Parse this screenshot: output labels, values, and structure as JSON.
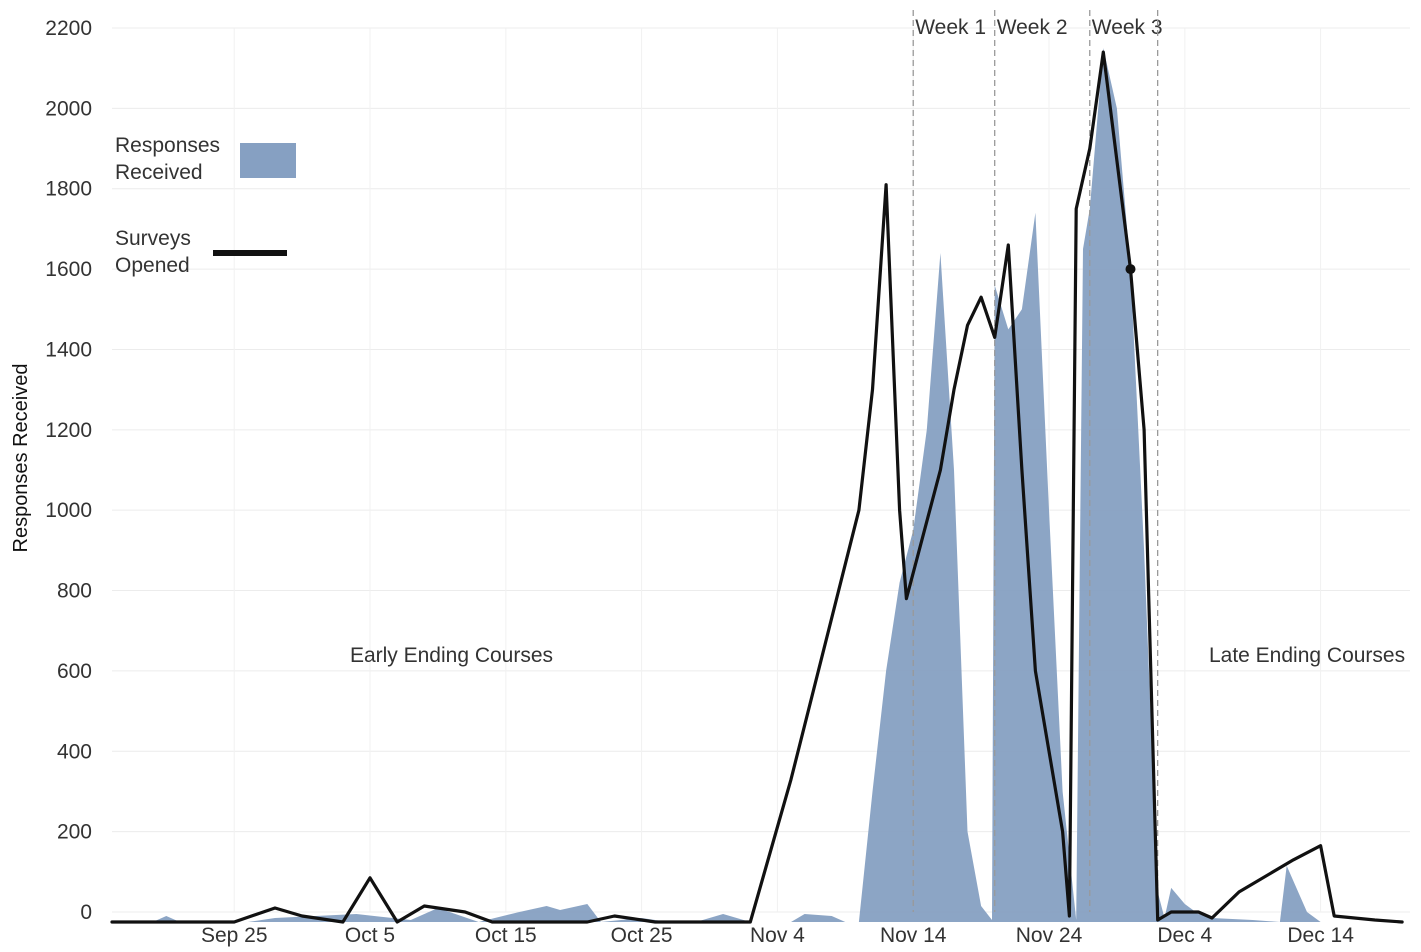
{
  "chart_data": {
    "type": "area",
    "ylabel": "Responses Received",
    "ylim": [
      -25,
      2250
    ],
    "yticks": [
      0,
      200,
      400,
      600,
      800,
      1000,
      1200,
      1400,
      1600,
      1800,
      2000,
      2200
    ],
    "xlim": [
      "2012-09-16",
      "2012-12-22"
    ],
    "xticks": [
      {
        "date": "2012-09-25",
        "label": "Sep 25"
      },
      {
        "date": "2012-10-05",
        "label": "Oct 5"
      },
      {
        "date": "2012-10-15",
        "label": "Oct 15"
      },
      {
        "date": "2012-10-25",
        "label": "Oct 25"
      },
      {
        "date": "2012-11-04",
        "label": "Nov 4"
      },
      {
        "date": "2012-11-14",
        "label": "Nov 14"
      },
      {
        "date": "2012-11-24",
        "label": "Nov 24"
      },
      {
        "date": "2012-12-04",
        "label": "Dec 4"
      },
      {
        "date": "2012-12-14",
        "label": "Dec 14"
      }
    ],
    "grid": true,
    "legend": {
      "position": "top-left",
      "items": [
        {
          "label_lines": [
            "Responses",
            "Received"
          ],
          "kind": "area",
          "color": "#86a0c2"
        },
        {
          "label_lines": [
            "Surveys",
            "Opened"
          ],
          "kind": "line",
          "color": "#111111"
        }
      ]
    },
    "week_markers": [
      {
        "date": "2012-11-14",
        "label": "Week 1"
      },
      {
        "date": "2012-11-20",
        "label": "Week 2"
      },
      {
        "date": "2012-11-27",
        "label": "Week 3"
      },
      {
        "date": "2012-12-02",
        "label": ""
      }
    ],
    "annotations": [
      {
        "text": "Early Ending Courses",
        "date": "2012-10-11",
        "value": 640
      },
      {
        "text": "Late Ending Courses",
        "date": "2012-12-13",
        "value": 640
      }
    ],
    "series": [
      {
        "name": "Responses Received",
        "kind": "area",
        "color": "#86a0c2",
        "points": [
          [
            "2012-09-16",
            -25
          ],
          [
            "2012-09-19",
            -25
          ],
          [
            "2012-09-20",
            -10
          ],
          [
            "2012-09-21",
            -25
          ],
          [
            "2012-09-26",
            -25
          ],
          [
            "2012-09-28",
            -15
          ],
          [
            "2012-10-04",
            -5
          ],
          [
            "2012-10-08",
            -20
          ],
          [
            "2012-10-10",
            10
          ],
          [
            "2012-10-13",
            -25
          ],
          [
            "2012-10-16",
            0
          ],
          [
            "2012-10-18",
            15
          ],
          [
            "2012-10-19",
            5
          ],
          [
            "2012-10-21",
            20
          ],
          [
            "2012-10-22",
            -25
          ],
          [
            "2012-10-25",
            -15
          ],
          [
            "2012-10-27",
            -25
          ],
          [
            "2012-10-29",
            -25
          ],
          [
            "2012-10-31",
            -5
          ],
          [
            "2012-11-02",
            -25
          ],
          [
            "2012-11-05",
            -25
          ],
          [
            "2012-11-06",
            -5
          ],
          [
            "2012-11-08",
            -10
          ],
          [
            "2012-11-09",
            -25
          ],
          [
            "2012-11-10",
            -25
          ],
          [
            "2012-11-11",
            300
          ],
          [
            "2012-11-12",
            600
          ],
          [
            "2012-11-13",
            820
          ],
          [
            "2012-11-14",
            950
          ],
          [
            "2012-11-15",
            1200
          ],
          [
            "2012-11-16",
            1640
          ],
          [
            "2012-11-17",
            1100
          ],
          [
            "2012-11-18",
            200
          ],
          [
            "2012-11-19",
            15
          ],
          [
            "2012-11-19.8",
            -20
          ],
          [
            "2012-11-20",
            1560
          ],
          [
            "2012-11-21",
            1450
          ],
          [
            "2012-11-22",
            1500
          ],
          [
            "2012-11-23",
            1740
          ],
          [
            "2012-11-24",
            1000
          ],
          [
            "2012-11-25",
            300
          ],
          [
            "2012-11-26",
            -20
          ],
          [
            "2012-11-26.5",
            1650
          ],
          [
            "2012-11-27",
            1750
          ],
          [
            "2012-11-28",
            2150
          ],
          [
            "2012-11-29",
            2000
          ],
          [
            "2012-11-30",
            1600
          ],
          [
            "2012-12-01",
            900
          ],
          [
            "2012-12-02",
            50
          ],
          [
            "2012-12-02.5",
            -15
          ],
          [
            "2012-12-03",
            60
          ],
          [
            "2012-12-04",
            20
          ],
          [
            "2012-12-05",
            -5
          ],
          [
            "2012-12-06",
            -15
          ],
          [
            "2012-12-09",
            -20
          ],
          [
            "2012-12-11",
            -25
          ],
          [
            "2012-12-11.5",
            115
          ],
          [
            "2012-12-13",
            0
          ],
          [
            "2012-12-14",
            -25
          ],
          [
            "2012-12-20",
            -25
          ]
        ]
      },
      {
        "name": "Surveys Opened",
        "kind": "line",
        "color": "#111111",
        "points": [
          [
            "2012-09-16",
            -25
          ],
          [
            "2012-09-25",
            -25
          ],
          [
            "2012-09-28",
            10
          ],
          [
            "2012-09-30",
            -10
          ],
          [
            "2012-10-03",
            -25
          ],
          [
            "2012-10-05",
            85
          ],
          [
            "2012-10-07",
            -25
          ],
          [
            "2012-10-09",
            15
          ],
          [
            "2012-10-12",
            0
          ],
          [
            "2012-10-14",
            -25
          ],
          [
            "2012-10-21",
            -25
          ],
          [
            "2012-10-23",
            -10
          ],
          [
            "2012-10-26",
            -25
          ],
          [
            "2012-11-02",
            -25
          ],
          [
            "2012-11-05",
            330
          ],
          [
            "2012-11-10",
            1000
          ],
          [
            "2012-11-11",
            1300
          ],
          [
            "2012-11-12",
            1810
          ],
          [
            "2012-11-13",
            1000
          ],
          [
            "2012-11-13.5",
            780
          ],
          [
            "2012-11-16",
            1100
          ],
          [
            "2012-11-17",
            1300
          ],
          [
            "2012-11-18",
            1460
          ],
          [
            "2012-11-19",
            1530
          ],
          [
            "2012-11-20",
            1430
          ],
          [
            "2012-11-21",
            1660
          ],
          [
            "2012-11-22",
            1100
          ],
          [
            "2012-11-23",
            600
          ],
          [
            "2012-11-25",
            200
          ],
          [
            "2012-11-25.5",
            -10
          ],
          [
            "2012-11-26",
            1750
          ],
          [
            "2012-11-27",
            1900
          ],
          [
            "2012-11-28",
            2140
          ],
          [
            "2012-11-30",
            1600
          ],
          [
            "2012-12-01",
            1200
          ],
          [
            "2012-12-02",
            -20
          ],
          [
            "2012-12-03",
            0
          ],
          [
            "2012-12-05",
            0
          ],
          [
            "2012-12-06",
            -15
          ],
          [
            "2012-12-08",
            50
          ],
          [
            "2012-12-12",
            130
          ],
          [
            "2012-12-14",
            165
          ],
          [
            "2012-12-15",
            -10
          ],
          [
            "2012-12-18",
            -20
          ],
          [
            "2012-12-20",
            -25
          ]
        ]
      }
    ]
  }
}
